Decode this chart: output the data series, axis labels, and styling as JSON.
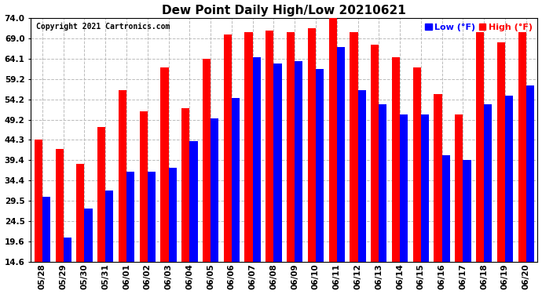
{
  "title": "Dew Point Daily High/Low 20210621",
  "copyright": "Copyright 2021 Cartronics.com",
  "dates": [
    "05/28",
    "05/29",
    "05/30",
    "05/31",
    "06/01",
    "06/02",
    "06/03",
    "06/04",
    "06/05",
    "06/06",
    "06/07",
    "06/08",
    "06/09",
    "06/10",
    "06/11",
    "06/12",
    "06/13",
    "06/14",
    "06/15",
    "06/16",
    "06/17",
    "06/18",
    "06/19",
    "06/20"
  ],
  "high": [
    44.3,
    42.0,
    38.5,
    47.5,
    56.5,
    51.2,
    62.0,
    52.0,
    64.1,
    70.0,
    70.5,
    71.0,
    70.5,
    71.5,
    74.0,
    70.5,
    67.5,
    64.5,
    62.0,
    55.5,
    50.5,
    70.5,
    68.0,
    70.5
  ],
  "low": [
    30.5,
    20.5,
    27.5,
    32.0,
    36.5,
    36.5,
    37.5,
    44.0,
    49.5,
    54.5,
    64.5,
    63.0,
    63.5,
    61.5,
    67.0,
    56.5,
    53.0,
    50.5,
    50.5,
    40.5,
    39.5,
    53.0,
    55.0,
    57.5
  ],
  "ylim_min": 14.6,
  "ylim_max": 74.0,
  "yticks": [
    14.6,
    19.6,
    24.5,
    29.5,
    34.4,
    39.4,
    44.3,
    49.2,
    54.2,
    59.2,
    64.1,
    69.0,
    74.0
  ],
  "bar_width": 0.38,
  "high_color": "#ff0000",
  "low_color": "#0000ff",
  "bg_color": "#ffffff",
  "grid_color": "#bbbbbb",
  "title_fontsize": 11,
  "copyright_fontsize": 7,
  "tick_fontsize": 7.5,
  "legend_fontsize": 8
}
